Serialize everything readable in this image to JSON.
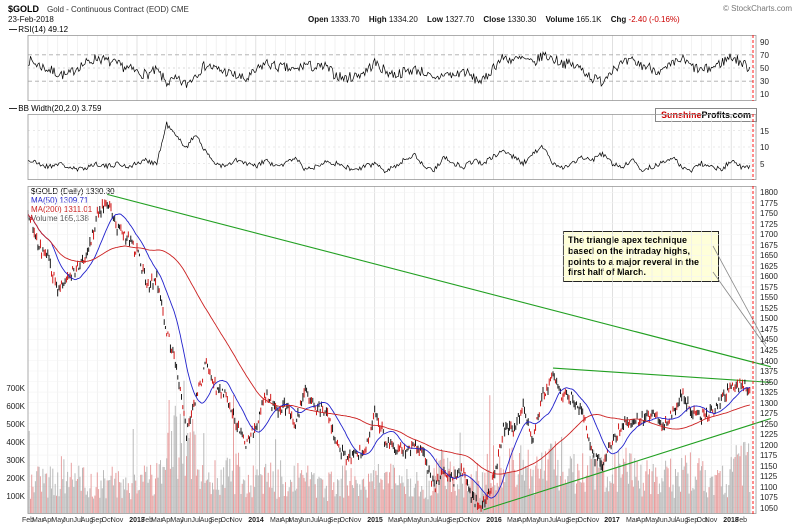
{
  "header": {
    "symbol": "$GOLD",
    "description": "Gold - Continuous Contract (EOD) CME",
    "date": "23-Feb-2018",
    "copyright": "© StockCharts.com",
    "quote": {
      "open_label": "Open",
      "open": "1333.70",
      "high_label": "High",
      "high": "1334.20",
      "low_label": "Low",
      "low": "1327.70",
      "close_label": "Close",
      "close": "1330.30",
      "volume_label": "Volume",
      "volume": "165.1K",
      "chg_label": "Chg",
      "chg": "-2.40 (-0.16%)"
    }
  },
  "rsi_panel": {
    "label": "RSI(14) 49.12"
  },
  "bb_panel": {
    "label": "BB Width(20,2.0) 3.759",
    "watermark_red": "Sunshine",
    "watermark_black": "Profits.com"
  },
  "main_panel": {
    "legend_price": "$GOLD (Daily) 1330.30",
    "legend_ma50": "MA(50) 1309.71",
    "legend_ma200": "MA(200) 1311.01",
    "legend_volume": "Volume 165,138",
    "annotation": "The triangle apex technique based on the intraday highs, points to a major reveral in the first half of March."
  },
  "colors": {
    "candle_up": "#000000",
    "candle_down": "#cc0000",
    "ma50": "#2222cc",
    "ma200": "#cc2222",
    "trendline": "#22a022",
    "volume_up": "#a3a3a3",
    "volume_down": "#e08080",
    "current_date_line": "#ff0000",
    "annotation_bg": "#ffffd9"
  },
  "chart_data": [
    {
      "name": "rsi",
      "type": "line",
      "title": "RSI(14)",
      "current_value": 49.12,
      "ylim": [
        0,
        100
      ],
      "yticks": [
        90,
        70,
        50,
        30,
        10
      ],
      "ref_lines": [
        70,
        50,
        30
      ],
      "x_range": [
        "Feb-2012",
        "Feb-2018"
      ],
      "monthly_values": [
        62,
        55,
        48,
        42,
        38,
        52,
        58,
        66,
        60,
        55,
        50,
        44,
        40,
        46,
        28,
        32,
        25,
        42,
        55,
        48,
        44,
        38,
        32,
        45,
        58,
        52,
        50,
        46,
        56,
        50,
        52,
        40,
        34,
        38,
        44,
        58,
        46,
        40,
        44,
        48,
        44,
        30,
        42,
        38,
        46,
        34,
        30,
        52,
        66,
        62,
        64,
        56,
        70,
        64,
        58,
        54,
        48,
        34,
        30,
        50,
        56,
        60,
        54,
        50,
        44,
        54,
        64,
        52,
        46,
        50,
        58,
        68,
        58,
        49
      ]
    },
    {
      "name": "bb_width",
      "type": "line",
      "title": "BB Width(20,2.0)",
      "current_value": 3.759,
      "ylim": [
        0,
        20
      ],
      "yticks": [
        15,
        10,
        5
      ],
      "x_range": [
        "Feb-2012",
        "Feb-2018"
      ],
      "monthly_values": [
        6,
        5,
        4,
        5,
        4,
        3,
        4,
        5,
        4,
        5,
        4,
        5,
        6,
        5,
        17,
        13,
        10,
        14,
        8,
        5,
        4,
        6,
        5,
        4,
        6,
        4,
        5,
        7,
        3,
        4,
        6,
        5,
        4,
        3,
        4,
        5,
        3,
        4,
        6,
        8,
        4,
        3,
        7,
        5,
        4,
        6,
        5,
        7,
        9,
        7,
        5,
        8,
        10,
        5,
        4,
        5,
        7,
        6,
        8,
        5,
        4,
        6,
        3,
        4,
        5,
        7,
        4,
        3,
        5,
        4,
        3,
        6,
        4,
        3.8
      ]
    },
    {
      "name": "gold_price",
      "type": "candlestick",
      "title": "$GOLD (Daily)",
      "last_close": 1330.3,
      "ylim": [
        1035,
        1815
      ],
      "yticks": [
        1800,
        1775,
        1750,
        1725,
        1700,
        1675,
        1650,
        1625,
        1600,
        1575,
        1550,
        1525,
        1500,
        1475,
        1450,
        1425,
        1400,
        1375,
        1350,
        1325,
        1300,
        1275,
        1250,
        1225,
        1200,
        1175,
        1150,
        1125,
        1100,
        1075,
        1050
      ],
      "x_range": [
        "Feb-2012",
        "Feb-2018"
      ],
      "monthly_close": [
        1760,
        1670,
        1650,
        1560,
        1600,
        1615,
        1655,
        1745,
        1775,
        1715,
        1690,
        1660,
        1580,
        1595,
        1470,
        1390,
        1230,
        1310,
        1395,
        1330,
        1325,
        1250,
        1205,
        1245,
        1320,
        1285,
        1290,
        1250,
        1325,
        1285,
        1285,
        1210,
        1170,
        1175,
        1185,
        1280,
        1215,
        1185,
        1185,
        1190,
        1170,
        1095,
        1135,
        1115,
        1140,
        1065,
        1060,
        1115,
        1235,
        1235,
        1290,
        1215,
        1320,
        1355,
        1310,
        1315,
        1275,
        1175,
        1150,
        1210,
        1250,
        1250,
        1265,
        1270,
        1240,
        1270,
        1320,
        1280,
        1270,
        1275,
        1305,
        1340,
        1345,
        1330
      ],
      "trendlines": [
        {
          "from_m": 8,
          "from_price": 1795,
          "to_m": 75,
          "to_price": 1385
        },
        {
          "from_m": 53,
          "from_price": 1382,
          "to_m": 75,
          "to_price": 1348
        },
        {
          "from_m": 46,
          "from_price": 1045,
          "to_m": 75,
          "to_price": 1262
        }
      ],
      "monthly_volume_k": [
        170,
        160,
        180,
        200,
        170,
        160,
        150,
        160,
        170,
        160,
        150,
        170,
        190,
        180,
        420,
        360,
        320,
        280,
        220,
        200,
        190,
        210,
        180,
        190,
        180,
        170,
        160,
        150,
        160,
        150,
        140,
        180,
        190,
        160,
        150,
        200,
        180,
        160,
        150,
        140,
        150,
        220,
        190,
        160,
        150,
        180,
        200,
        240,
        260,
        230,
        220,
        210,
        250,
        260,
        230,
        220,
        210,
        240,
        220,
        230,
        210,
        200,
        190,
        180,
        190,
        180,
        220,
        200,
        180,
        170,
        180,
        230,
        240,
        165
      ],
      "volume_ticks": [
        {
          "label": "700K",
          "v": 700
        },
        {
          "label": "600K",
          "v": 600
        },
        {
          "label": "500K",
          "v": 500
        },
        {
          "label": "400K",
          "v": 400
        },
        {
          "label": "300K",
          "v": 300
        },
        {
          "label": "200K",
          "v": 200
        },
        {
          "label": "100K",
          "v": 100
        }
      ],
      "x_ticks": [
        {
          "m": 0,
          "label": "Feb"
        },
        {
          "m": 1,
          "label": "Mar"
        },
        {
          "m": 2,
          "label": "Apr"
        },
        {
          "m": 3,
          "label": "May"
        },
        {
          "m": 4,
          "label": "Jun"
        },
        {
          "m": 5,
          "label": "Jul"
        },
        {
          "m": 6,
          "label": "Aug"
        },
        {
          "m": 7,
          "label": "Sep"
        },
        {
          "m": 8,
          "label": "Oct"
        },
        {
          "m": 9,
          "label": "Nov"
        },
        {
          "m": 11,
          "label": "2013",
          "year": true
        },
        {
          "m": 12,
          "label": "Feb"
        },
        {
          "m": 13,
          "label": "Mar"
        },
        {
          "m": 14,
          "label": "Apr"
        },
        {
          "m": 15,
          "label": "May"
        },
        {
          "m": 16,
          "label": "Jun"
        },
        {
          "m": 17,
          "label": "Jul"
        },
        {
          "m": 18,
          "label": "Aug"
        },
        {
          "m": 19,
          "label": "Sep"
        },
        {
          "m": 20,
          "label": "Oct"
        },
        {
          "m": 21,
          "label": "Nov"
        },
        {
          "m": 23,
          "label": "2014",
          "year": true
        },
        {
          "m": 25,
          "label": "Mar"
        },
        {
          "m": 26,
          "label": "Apr"
        },
        {
          "m": 27,
          "label": "May"
        },
        {
          "m": 28,
          "label": "Jun"
        },
        {
          "m": 29,
          "label": "Jul"
        },
        {
          "m": 30,
          "label": "Aug"
        },
        {
          "m": 31,
          "label": "Sep"
        },
        {
          "m": 32,
          "label": "Oct"
        },
        {
          "m": 33,
          "label": "Nov"
        },
        {
          "m": 35,
          "label": "2015",
          "year": true
        },
        {
          "m": 37,
          "label": "Mar"
        },
        {
          "m": 38,
          "label": "Apr"
        },
        {
          "m": 39,
          "label": "May"
        },
        {
          "m": 40,
          "label": "Jun"
        },
        {
          "m": 41,
          "label": "Jul"
        },
        {
          "m": 42,
          "label": "Aug"
        },
        {
          "m": 43,
          "label": "Sep"
        },
        {
          "m": 44,
          "label": "Oct"
        },
        {
          "m": 45,
          "label": "Nov"
        },
        {
          "m": 47,
          "label": "2016",
          "year": true
        },
        {
          "m": 49,
          "label": "Mar"
        },
        {
          "m": 50,
          "label": "Apr"
        },
        {
          "m": 51,
          "label": "May"
        },
        {
          "m": 52,
          "label": "Jun"
        },
        {
          "m": 53,
          "label": "Jul"
        },
        {
          "m": 54,
          "label": "Aug"
        },
        {
          "m": 55,
          "label": "Sep"
        },
        {
          "m": 56,
          "label": "Oct"
        },
        {
          "m": 57,
          "label": "Nov"
        },
        {
          "m": 59,
          "label": "2017",
          "year": true
        },
        {
          "m": 61,
          "label": "Mar"
        },
        {
          "m": 62,
          "label": "Apr"
        },
        {
          "m": 63,
          "label": "May"
        },
        {
          "m": 64,
          "label": "Jun"
        },
        {
          "m": 65,
          "label": "Jul"
        },
        {
          "m": 66,
          "label": "Aug"
        },
        {
          "m": 67,
          "label": "Sep"
        },
        {
          "m": 68,
          "label": "Oct"
        },
        {
          "m": 69,
          "label": "Nov"
        },
        {
          "m": 71,
          "label": "2018",
          "year": true
        },
        {
          "m": 72,
          "label": "Feb"
        }
      ]
    }
  ]
}
